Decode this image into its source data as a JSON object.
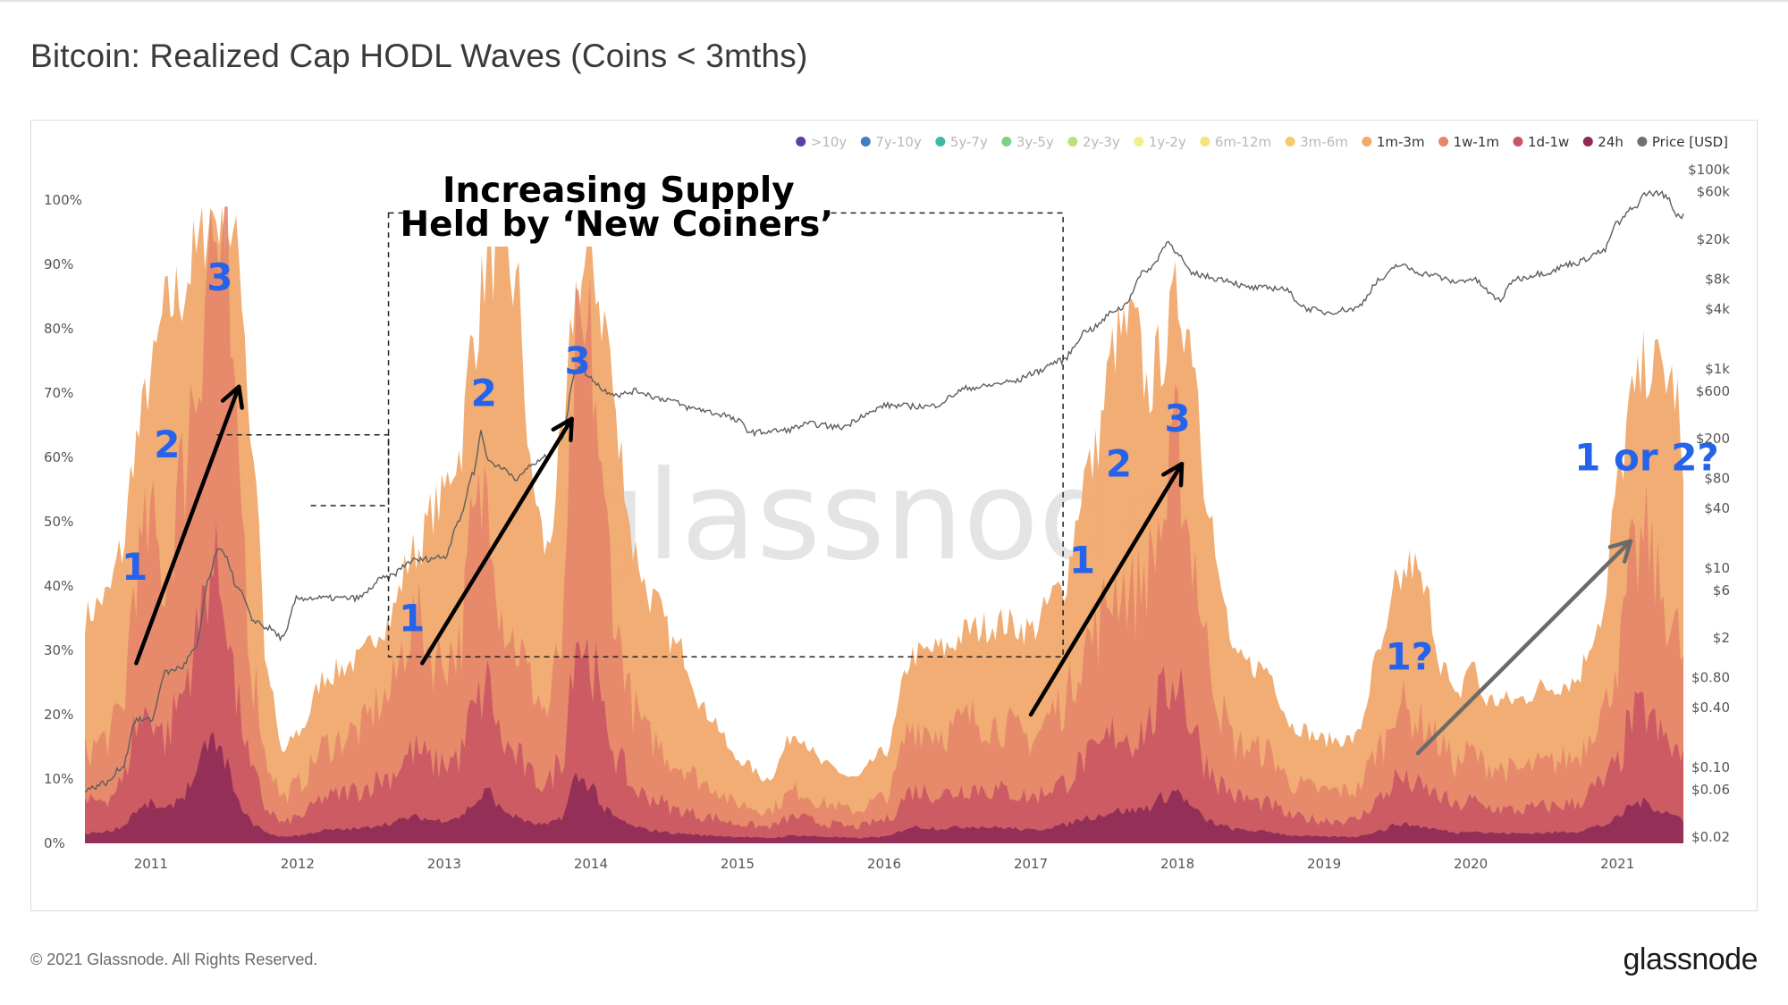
{
  "title": "Bitcoin: Realized Cap HODL Waves (Coins < 3mths)",
  "footer": {
    "copyright": "© 2021 Glassnode. All Rights Reserved.",
    "logo": "glassnode"
  },
  "watermark": "glassnode",
  "chart_data": {
    "type": "area",
    "title": "Bitcoin: Realized Cap HODL Waves (Coins < 3mths)",
    "x_range": [
      2010.55,
      2021.45
    ],
    "x_ticks": [
      "2011",
      "2012",
      "2013",
      "2014",
      "2015",
      "2016",
      "2017",
      "2018",
      "2019",
      "2020",
      "2021"
    ],
    "x_tick_values": [
      2011,
      2012,
      2013,
      2014,
      2015,
      2016,
      2017,
      2018,
      2019,
      2020,
      2021
    ],
    "ylim": [
      0,
      100
    ],
    "y_ticks": [
      "0%",
      "10%",
      "20%",
      "30%",
      "40%",
      "50%",
      "60%",
      "70%",
      "80%",
      "90%",
      "100%"
    ],
    "y_tick_values": [
      0,
      10,
      20,
      30,
      40,
      50,
      60,
      70,
      80,
      90,
      100
    ],
    "y2_scale": "log",
    "y2_ticks": [
      "$0.02",
      "$0.06",
      "$0.10",
      "$0.40",
      "$0.80",
      "$2",
      "$6",
      "$10",
      "$40",
      "$80",
      "$200",
      "$600",
      "$1k",
      "$4k",
      "$8k",
      "$20k",
      "$60k",
      "$100k"
    ],
    "y2_tick_values": [
      0.02,
      0.06,
      0.1,
      0.4,
      0.8,
      2,
      6,
      10,
      40,
      80,
      200,
      600,
      1000,
      4000,
      8000,
      20000,
      60000,
      100000
    ],
    "legend": [
      {
        "name": ">10y",
        "color": "#5b3fa6",
        "active": false
      },
      {
        "name": "7y-10y",
        "color": "#3e7fc4",
        "active": false
      },
      {
        "name": "5y-7y",
        "color": "#3fb8a8",
        "active": false
      },
      {
        "name": "3y-5y",
        "color": "#7fcf8a",
        "active": false
      },
      {
        "name": "2y-3y",
        "color": "#b9e27a",
        "active": false
      },
      {
        "name": "1y-2y",
        "color": "#f2ef8a",
        "active": false
      },
      {
        "name": "6m-12m",
        "color": "#f8e27a",
        "active": false
      },
      {
        "name": "3m-6m",
        "color": "#f5c96e",
        "active": false
      },
      {
        "name": "1m-3m",
        "color": "#f0a96b",
        "active": true
      },
      {
        "name": "1w-1m",
        "color": "#e4866a",
        "active": true
      },
      {
        "name": "1d-1w",
        "color": "#c95564",
        "active": true
      },
      {
        "name": "24h",
        "color": "#8e2a55",
        "active": true
      },
      {
        "name": "Price [USD]",
        "color": "#6f6f6f",
        "active": true
      }
    ],
    "series": [
      {
        "name": "1m-3m",
        "color": "#f0a96b",
        "x": [
          2010.55,
          2010.7,
          2010.8,
          2010.9,
          2011.0,
          2011.1,
          2011.2,
          2011.3,
          2011.4,
          2011.5,
          2011.6,
          2011.7,
          2011.8,
          2011.9,
          2012.0,
          2012.2,
          2012.4,
          2012.6,
          2012.8,
          2012.95,
          2013.1,
          2013.2,
          2013.3,
          2013.4,
          2013.5,
          2013.6,
          2013.7,
          2013.8,
          2013.9,
          2014.0,
          2014.1,
          2014.2,
          2014.3,
          2014.4,
          2014.6,
          2014.8,
          2015.0,
          2015.2,
          2015.4,
          2015.6,
          2015.8,
          2016.0,
          2016.2,
          2016.4,
          2016.6,
          2016.8,
          2017.0,
          2017.2,
          2017.4,
          2017.6,
          2017.7,
          2017.8,
          2017.9,
          2018.0,
          2018.1,
          2018.2,
          2018.3,
          2018.4,
          2018.6,
          2018.8,
          2019.0,
          2019.2,
          2019.4,
          2019.5,
          2019.6,
          2019.7,
          2019.8,
          2019.9,
          2020.0,
          2020.1,
          2020.3,
          2020.5,
          2020.7,
          2020.9,
          2021.0,
          2021.1,
          2021.2,
          2021.3,
          2021.4,
          2021.45
        ],
        "values": [
          35,
          38,
          45,
          62,
          72,
          82,
          85,
          90,
          97,
          97,
          90,
          60,
          25,
          14,
          17,
          26,
          28,
          34,
          45,
          52,
          60,
          78,
          90,
          91,
          85,
          55,
          45,
          60,
          85,
          90,
          80,
          60,
          45,
          38,
          30,
          20,
          13,
          10,
          17,
          12,
          10,
          14,
          29,
          30,
          33,
          34,
          33,
          39,
          58,
          78,
          80,
          70,
          76,
          84,
          78,
          55,
          38,
          28,
          27,
          18,
          16,
          16,
          30,
          40,
          43,
          38,
          28,
          22,
          28,
          22,
          22,
          24,
          25,
          35,
          55,
          68,
          74,
          73,
          70,
          55
        ]
      },
      {
        "name": "1w-1m",
        "color": "#e4866a",
        "x": [
          2010.55,
          2010.7,
          2010.8,
          2010.9,
          2011.0,
          2011.1,
          2011.2,
          2011.3,
          2011.4,
          2011.5,
          2011.6,
          2011.7,
          2011.8,
          2011.9,
          2012.0,
          2012.2,
          2012.4,
          2012.6,
          2012.8,
          2012.95,
          2013.1,
          2013.2,
          2013.3,
          2013.4,
          2013.5,
          2013.6,
          2013.7,
          2013.8,
          2013.9,
          2014.0,
          2014.1,
          2014.2,
          2014.3,
          2014.4,
          2014.6,
          2014.8,
          2015.0,
          2015.2,
          2015.4,
          2015.6,
          2015.8,
          2016.0,
          2016.2,
          2016.4,
          2016.6,
          2016.8,
          2017.0,
          2017.2,
          2017.4,
          2017.6,
          2017.7,
          2017.8,
          2017.9,
          2018.0,
          2018.1,
          2018.2,
          2018.3,
          2018.4,
          2018.6,
          2018.8,
          2019.0,
          2019.2,
          2019.4,
          2019.5,
          2019.6,
          2019.7,
          2019.8,
          2019.9,
          2020.0,
          2020.1,
          2020.3,
          2020.5,
          2020.7,
          2020.9,
          2021.0,
          2021.1,
          2021.2,
          2021.3,
          2021.4,
          2021.45
        ],
        "values": [
          14,
          16,
          20,
          42,
          48,
          40,
          55,
          70,
          92,
          88,
          55,
          25,
          12,
          7,
          9,
          15,
          17,
          22,
          34,
          28,
          30,
          48,
          55,
          35,
          30,
          24,
          20,
          30,
          72,
          75,
          48,
          30,
          20,
          16,
          12,
          9,
          6,
          5,
          8,
          6,
          5,
          7,
          18,
          17,
          19,
          18,
          16,
          21,
          31,
          40,
          38,
          42,
          49,
          60,
          45,
          30,
          20,
          15,
          14,
          9,
          8,
          8,
          15,
          22,
          19,
          18,
          15,
          12,
          14,
          12,
          11,
          12,
          13,
          20,
          28,
          42,
          46,
          38,
          32,
          28
        ]
      },
      {
        "name": "1d-1w",
        "color": "#c95564",
        "x": [
          2010.55,
          2010.7,
          2010.8,
          2010.9,
          2011.0,
          2011.1,
          2011.2,
          2011.3,
          2011.4,
          2011.5,
          2011.6,
          2011.7,
          2011.8,
          2011.9,
          2012.0,
          2012.2,
          2012.4,
          2012.6,
          2012.8,
          2012.95,
          2013.1,
          2013.2,
          2013.3,
          2013.4,
          2013.5,
          2013.6,
          2013.7,
          2013.8,
          2013.9,
          2014.0,
          2014.1,
          2014.2,
          2014.3,
          2014.4,
          2014.6,
          2014.8,
          2015.0,
          2015.2,
          2015.4,
          2015.6,
          2015.8,
          2016.0,
          2016.2,
          2016.4,
          2016.6,
          2016.8,
          2017.0,
          2017.2,
          2017.4,
          2017.6,
          2017.7,
          2017.8,
          2017.9,
          2018.0,
          2018.1,
          2018.2,
          2018.3,
          2018.4,
          2018.6,
          2018.8,
          2019.0,
          2019.2,
          2019.4,
          2019.5,
          2019.6,
          2019.7,
          2019.8,
          2019.9,
          2020.0,
          2020.1,
          2020.3,
          2020.5,
          2020.7,
          2020.9,
          2021.0,
          2021.1,
          2021.2,
          2021.3,
          2021.4,
          2021.45
        ],
        "values": [
          6,
          7,
          9,
          18,
          20,
          16,
          22,
          30,
          42,
          38,
          20,
          10,
          5,
          3,
          4,
          7,
          8,
          10,
          14,
          12,
          13,
          20,
          24,
          15,
          13,
          10,
          9,
          13,
          32,
          28,
          18,
          12,
          8,
          7,
          5,
          4,
          3,
          2.5,
          4,
          3,
          2.5,
          3.5,
          8,
          7.5,
          8.5,
          8,
          7,
          9,
          13,
          17,
          16,
          18,
          22,
          26,
          18,
          12,
          9,
          7,
          6,
          4,
          3.5,
          3.5,
          7,
          10,
          9,
          8,
          7,
          5.5,
          6.5,
          5.5,
          5,
          5.5,
          6,
          9,
          12,
          19,
          20,
          16,
          14,
          12
        ]
      },
      {
        "name": "24h",
        "color": "#8e2a55",
        "x": [
          2010.55,
          2010.7,
          2010.8,
          2010.9,
          2011.0,
          2011.1,
          2011.2,
          2011.3,
          2011.4,
          2011.5,
          2011.6,
          2011.7,
          2011.8,
          2011.9,
          2012.0,
          2012.2,
          2012.4,
          2012.6,
          2012.8,
          2012.95,
          2013.1,
          2013.2,
          2013.3,
          2013.4,
          2013.5,
          2013.6,
          2013.7,
          2013.8,
          2013.9,
          2014.0,
          2014.1,
          2014.2,
          2014.3,
          2014.4,
          2014.6,
          2014.8,
          2015.0,
          2015.2,
          2015.4,
          2015.6,
          2015.8,
          2016.0,
          2016.2,
          2016.4,
          2016.6,
          2016.8,
          2017.0,
          2017.2,
          2017.4,
          2017.6,
          2017.7,
          2017.8,
          2017.9,
          2018.0,
          2018.1,
          2018.2,
          2018.3,
          2018.4,
          2018.6,
          2018.8,
          2019.0,
          2019.2,
          2019.4,
          2019.5,
          2019.6,
          2019.7,
          2019.8,
          2019.9,
          2020.0,
          2020.1,
          2020.3,
          2020.5,
          2020.7,
          2020.9,
          2021.0,
          2021.1,
          2021.2,
          2021.3,
          2021.4,
          2021.45
        ],
        "values": [
          1.5,
          1.8,
          2.5,
          5,
          6,
          5,
          7,
          10,
          16,
          13,
          6,
          3,
          1.5,
          1,
          1.2,
          2,
          2.2,
          3,
          4,
          3.5,
          4,
          6,
          8,
          5,
          4,
          3,
          2.8,
          4,
          10,
          9,
          5,
          3.5,
          2.5,
          2,
          1.5,
          1.2,
          1,
          0.8,
          1.2,
          1,
          0.8,
          1,
          2.5,
          2.3,
          2.6,
          2.4,
          2,
          2.7,
          4,
          5,
          5,
          5.5,
          7,
          8,
          5.5,
          3.5,
          2.7,
          2.1,
          1.8,
          1.2,
          1,
          1,
          2,
          3,
          2.8,
          2.4,
          2,
          1.6,
          2,
          1.6,
          1.5,
          1.6,
          1.8,
          2.7,
          3.8,
          6,
          6.2,
          5,
          4.2,
          3.6
        ]
      },
      {
        "name": "Price [USD]",
        "color": "#6f6f6f",
        "axis": "right",
        "x": [
          2010.55,
          2010.7,
          2010.8,
          2010.9,
          2011.0,
          2011.1,
          2011.2,
          2011.3,
          2011.4,
          2011.45,
          2011.5,
          2011.6,
          2011.7,
          2011.8,
          2011.9,
          2012.0,
          2012.2,
          2012.4,
          2012.6,
          2012.8,
          2013.0,
          2013.1,
          2013.2,
          2013.25,
          2013.3,
          2013.4,
          2013.5,
          2013.6,
          2013.7,
          2013.8,
          2013.9,
          2013.92,
          2014.0,
          2014.1,
          2014.2,
          2014.3,
          2014.5,
          2014.7,
          2014.9,
          2015.0,
          2015.1,
          2015.3,
          2015.5,
          2015.7,
          2015.9,
          2016.0,
          2016.3,
          2016.6,
          2016.9,
          2017.0,
          2017.2,
          2017.4,
          2017.6,
          2017.8,
          2017.95,
          2018.0,
          2018.1,
          2018.3,
          2018.5,
          2018.7,
          2018.9,
          2019.0,
          2019.2,
          2019.4,
          2019.5,
          2019.7,
          2019.9,
          2020.0,
          2020.2,
          2020.3,
          2020.5,
          2020.7,
          2020.9,
          2021.0,
          2021.1,
          2021.2,
          2021.3,
          2021.35,
          2021.4,
          2021.45
        ],
        "values": [
          0.06,
          0.07,
          0.1,
          0.3,
          0.3,
          0.9,
          1,
          1.5,
          8,
          15,
          14,
          6,
          3,
          2.5,
          2,
          5,
          5,
          5,
          8,
          12,
          13,
          30,
          90,
          230,
          120,
          100,
          80,
          110,
          130,
          200,
          1000,
          1100,
          800,
          600,
          550,
          600,
          500,
          400,
          350,
          300,
          230,
          240,
          280,
          260,
          360,
          430,
          420,
          650,
          750,
          900,
          1200,
          2500,
          4000,
          10000,
          19000,
          14000,
          9000,
          8000,
          6500,
          6500,
          4000,
          3700,
          4000,
          8000,
          11000,
          9000,
          7500,
          8000,
          5000,
          8000,
          9200,
          11500,
          15000,
          29000,
          40000,
          58000,
          58000,
          50000,
          36000,
          34000
        ]
      }
    ],
    "annotations": {
      "box_title_line1": "Increasing Supply",
      "box_title_line2": "Held by ‘New Coiners’",
      "labels": [
        {
          "text": "1",
          "x": 2010.89,
          "y": 41
        },
        {
          "text": "2",
          "x": 2011.11,
          "y": 60
        },
        {
          "text": "3",
          "x": 2011.47,
          "y": 86
        },
        {
          "text": "1",
          "x": 2012.78,
          "y": 33
        },
        {
          "text": "2",
          "x": 2013.27,
          "y": 68
        },
        {
          "text": "3",
          "x": 2013.91,
          "y": 73
        },
        {
          "text": "1",
          "x": 2017.35,
          "y": 42
        },
        {
          "text": "2",
          "x": 2017.6,
          "y": 57
        },
        {
          "text": "3",
          "x": 2018.0,
          "y": 64
        },
        {
          "text": "1?",
          "x": 2019.58,
          "y": 27
        },
        {
          "text": "1 or 2?",
          "x": 2021.2,
          "y": 58
        }
      ],
      "arrows": [
        {
          "x1": 2010.9,
          "y1": 28,
          "x2": 2011.6,
          "y2": 71,
          "color": "#000000"
        },
        {
          "x1": 2012.85,
          "y1": 28,
          "x2": 2013.87,
          "y2": 66,
          "color": "#000000"
        },
        {
          "x1": 2017.0,
          "y1": 20,
          "x2": 2018.03,
          "y2": 59,
          "color": "#000000"
        },
        {
          "x1": 2019.64,
          "y1": 14,
          "x2": 2021.09,
          "y2": 47,
          "color": "#6b6b6b"
        }
      ],
      "box": {
        "x1": 2012.62,
        "y1": 98,
        "x2": 2017.22,
        "y2": 29
      },
      "small_box": {
        "x1": 2011.45,
        "y1": 63.5,
        "x2": 2012.62,
        "y2": 52.5
      }
    }
  }
}
